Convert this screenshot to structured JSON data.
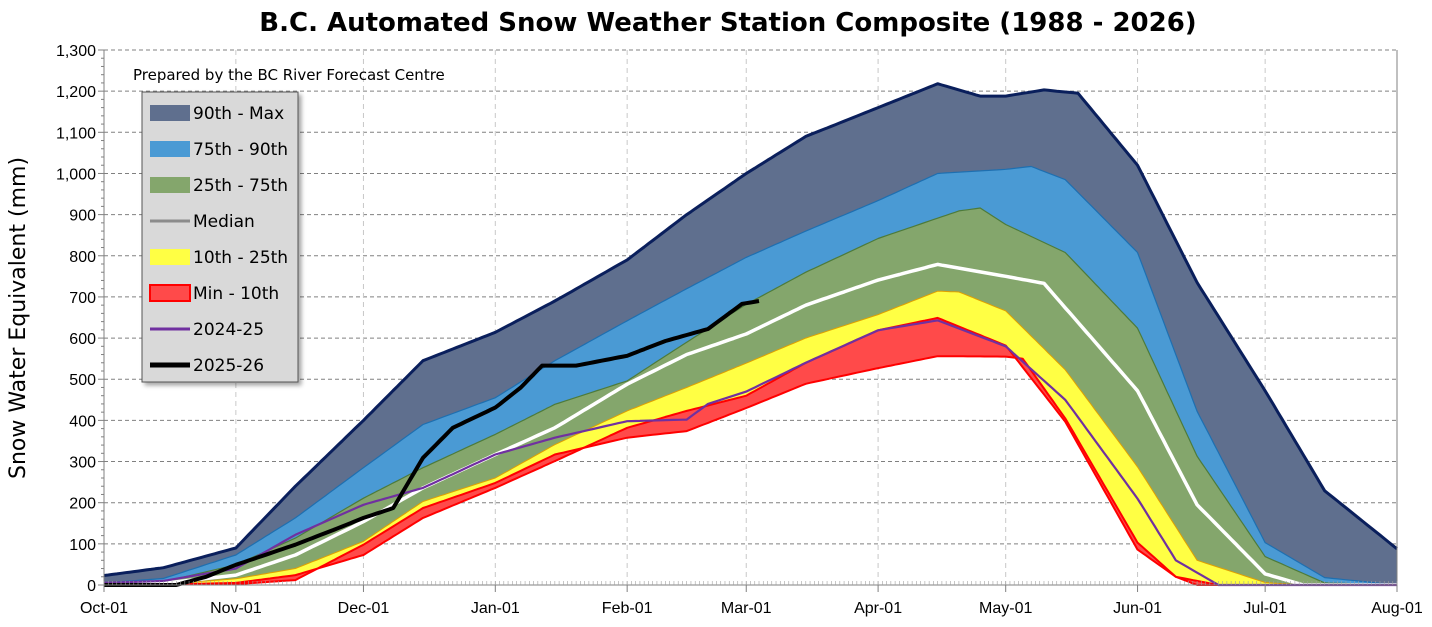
{
  "chart_data": {
    "type": "area",
    "title": "B.C. Automated Snow Weather Station Composite (1988 - 2026)",
    "annotation": "Prepared by the BC River Forecast Centre",
    "xlabel": "",
    "ylabel": "Snow Water Equivalent (mm)",
    "ylim": [
      0,
      1300
    ],
    "yticks": [
      "0",
      "100",
      "200",
      "300",
      "400",
      "500",
      "600",
      "700",
      "800",
      "900",
      "1,000",
      "1,100",
      "1,200",
      "1,300"
    ],
    "xticks": [
      "Oct-01",
      "Nov-01",
      "Dec-01",
      "Jan-01",
      "Feb-01",
      "Mar-01",
      "Apr-01",
      "May-01",
      "Jun-01",
      "Jul-01",
      "Aug-01"
    ],
    "grid": true,
    "legend_position": "top-left",
    "legend": [
      {
        "label": "90th - Max",
        "kind": "band",
        "color": "#5f6f8e"
      },
      {
        "label": "75th - 90th",
        "kind": "band",
        "color": "#4a9ad4"
      },
      {
        "label": "25th - 75th",
        "kind": "band",
        "color": "#84a66c"
      },
      {
        "label": "Median",
        "kind": "line",
        "color": "#ffffff"
      },
      {
        "label": "10th - 25th",
        "kind": "band",
        "color": "#ffff44"
      },
      {
        "label": "Min - 10th",
        "kind": "band",
        "color": "#ff4a4a"
      },
      {
        "label": "2024-25",
        "kind": "line",
        "color": "#7030a0"
      },
      {
        "label": "2025-26",
        "kind": "line",
        "color": "#000000"
      }
    ],
    "series": {
      "max": [
        [
          "Oct-01",
          23
        ],
        [
          "Oct-15",
          42
        ],
        [
          "Nov-01",
          90
        ],
        [
          "Nov-15",
          240
        ],
        [
          "Dec-01",
          400
        ],
        [
          "Dec-15",
          545
        ],
        [
          "Jan-01",
          614
        ],
        [
          "Jan-15",
          690
        ],
        [
          "Feb-01",
          790
        ],
        [
          "Feb-15",
          900
        ],
        [
          "Mar-01",
          1000
        ],
        [
          "Mar-15",
          1090
        ],
        [
          "Apr-01",
          1160
        ],
        [
          "Apr-15",
          1218
        ],
        [
          "Apr-25",
          1188
        ],
        [
          "May-01",
          1188
        ],
        [
          "May-10",
          1203
        ],
        [
          "May-18",
          1195
        ],
        [
          "Jun-01",
          1020
        ],
        [
          "Jun-15",
          735
        ],
        [
          "Jul-01",
          472
        ],
        [
          "Jul-15",
          229
        ],
        [
          "Aug-01",
          88
        ]
      ],
      "p90": [
        [
          "Oct-01",
          5
        ],
        [
          "Oct-15",
          16
        ],
        [
          "Nov-01",
          73
        ],
        [
          "Nov-15",
          163
        ],
        [
          "Dec-01",
          285
        ],
        [
          "Dec-15",
          390
        ],
        [
          "Jan-01",
          455
        ],
        [
          "Jan-15",
          545
        ],
        [
          "Feb-01",
          642
        ],
        [
          "Feb-15",
          720
        ],
        [
          "Mar-01",
          796
        ],
        [
          "Mar-15",
          860
        ],
        [
          "Apr-01",
          934
        ],
        [
          "Apr-15",
          1000
        ],
        [
          "May-01",
          1010
        ],
        [
          "May-07",
          1017
        ],
        [
          "May-15",
          985
        ],
        [
          "Jun-01",
          808
        ],
        [
          "Jun-15",
          422
        ],
        [
          "Jul-01",
          103
        ],
        [
          "Jul-15",
          18
        ],
        [
          "Aug-01",
          0
        ]
      ],
      "p75": [
        [
          "Oct-01",
          2
        ],
        [
          "Oct-15",
          8
        ],
        [
          "Nov-01",
          49
        ],
        [
          "Nov-15",
          114
        ],
        [
          "Dec-01",
          211
        ],
        [
          "Dec-15",
          285
        ],
        [
          "Jan-01",
          366
        ],
        [
          "Jan-15",
          439
        ],
        [
          "Feb-01",
          496
        ],
        [
          "Feb-15",
          590
        ],
        [
          "Mar-01",
          682
        ],
        [
          "Mar-15",
          760
        ],
        [
          "Apr-01",
          842
        ],
        [
          "Apr-20",
          909
        ],
        [
          "Apr-25",
          916
        ],
        [
          "May-01",
          876
        ],
        [
          "May-15",
          808
        ],
        [
          "Jun-01",
          624
        ],
        [
          "Jun-15",
          313
        ],
        [
          "Jul-01",
          69
        ],
        [
          "Jul-15",
          5
        ],
        [
          "Aug-01",
          0
        ]
      ],
      "median": [
        [
          "Oct-01",
          0
        ],
        [
          "Oct-15",
          4
        ],
        [
          "Nov-01",
          24
        ],
        [
          "Nov-15",
          73
        ],
        [
          "Dec-01",
          154
        ],
        [
          "Dec-15",
          236
        ],
        [
          "Jan-01",
          317
        ],
        [
          "Jan-15",
          382
        ],
        [
          "Feb-01",
          488
        ],
        [
          "Feb-15",
          560
        ],
        [
          "Mar-01",
          610
        ],
        [
          "Mar-15",
          680
        ],
        [
          "Apr-01",
          741
        ],
        [
          "Apr-15",
          779
        ],
        [
          "May-01",
          750
        ],
        [
          "May-10",
          733
        ],
        [
          "Jun-01",
          472
        ],
        [
          "Jun-15",
          195
        ],
        [
          "Jul-01",
          27
        ],
        [
          "Jul-10",
          0
        ],
        [
          "Aug-01",
          0
        ]
      ],
      "p25": [
        [
          "Oct-01",
          0
        ],
        [
          "Oct-15",
          2
        ],
        [
          "Nov-01",
          15
        ],
        [
          "Nov-15",
          40
        ],
        [
          "Dec-01",
          106
        ],
        [
          "Dec-15",
          203
        ],
        [
          "Jan-01",
          260
        ],
        [
          "Jan-15",
          341
        ],
        [
          "Feb-01",
          423
        ],
        [
          "Feb-15",
          480
        ],
        [
          "Mar-01",
          539
        ],
        [
          "Mar-15",
          600
        ],
        [
          "Apr-01",
          657
        ],
        [
          "Apr-15",
          714
        ],
        [
          "Apr-20",
          712
        ],
        [
          "May-01",
          666
        ],
        [
          "May-15",
          523
        ],
        [
          "Jun-01",
          287
        ],
        [
          "Jun-15",
          60
        ],
        [
          "Jul-01",
          6
        ],
        [
          "Jul-10",
          0
        ],
        [
          "Aug-01",
          0
        ]
      ],
      "p10": [
        [
          "Oct-01",
          0
        ],
        [
          "Oct-15",
          1
        ],
        [
          "Nov-01",
          5
        ],
        [
          "Nov-15",
          24
        ],
        [
          "Dec-01",
          73
        ],
        [
          "Dec-15",
          163
        ],
        [
          "Jan-01",
          236
        ],
        [
          "Jan-15",
          301
        ],
        [
          "Feb-01",
          382
        ],
        [
          "Feb-15",
          423
        ],
        [
          "Mar-01",
          460
        ],
        [
          "Mar-15",
          540
        ],
        [
          "Apr-01",
          619
        ],
        [
          "Apr-15",
          649
        ],
        [
          "May-01",
          582
        ],
        [
          "May-15",
          397
        ],
        [
          "Jun-01",
          86
        ],
        [
          "Jun-10",
          20
        ],
        [
          "Jun-20",
          0
        ],
        [
          "Aug-01",
          0
        ]
      ],
      "min": [
        [
          "Oct-01",
          0
        ],
        [
          "Nov-01",
          2
        ],
        [
          "Nov-15",
          12
        ],
        [
          "Dec-01",
          98
        ],
        [
          "Dec-15",
          187
        ],
        [
          "Jan-01",
          248
        ],
        [
          "Jan-15",
          317
        ],
        [
          "Feb-01",
          358
        ],
        [
          "Feb-15",
          374
        ],
        [
          "Mar-01",
          430
        ],
        [
          "Mar-15",
          489
        ],
        [
          "Apr-01",
          527
        ],
        [
          "Apr-15",
          556
        ],
        [
          "May-01",
          555
        ],
        [
          "May-05",
          550
        ],
        [
          "May-15",
          405
        ],
        [
          "Jun-01",
          103
        ],
        [
          "Jun-10",
          20
        ],
        [
          "Jun-15",
          0
        ],
        [
          "Aug-01",
          0
        ]
      ],
      "y2024_25": [
        [
          "Oct-01",
          5
        ],
        [
          "Oct-15",
          10
        ],
        [
          "Nov-01",
          40
        ],
        [
          "Nov-15",
          122
        ],
        [
          "Dec-01",
          195
        ],
        [
          "Dec-15",
          236
        ],
        [
          "Jan-01",
          317
        ],
        [
          "Jan-15",
          358
        ],
        [
          "Feb-01",
          398
        ],
        [
          "Feb-15",
          402
        ],
        [
          "Feb-20",
          440
        ],
        [
          "Mar-01",
          470
        ],
        [
          "Mar-15",
          540
        ],
        [
          "Apr-01",
          619
        ],
        [
          "Apr-15",
          643
        ],
        [
          "May-01",
          580
        ],
        [
          "May-15",
          450
        ],
        [
          "Jun-01",
          210
        ],
        [
          "Jun-10",
          60
        ],
        [
          "Jun-20",
          0
        ],
        [
          "Aug-01",
          0
        ]
      ],
      "y2025_26": [
        [
          "Oct-01",
          0
        ],
        [
          "Oct-18",
          0
        ],
        [
          "Oct-25",
          20
        ],
        [
          "Nov-01",
          49
        ],
        [
          "Nov-15",
          98
        ],
        [
          "Nov-25",
          138
        ],
        [
          "Dec-01",
          163
        ],
        [
          "Dec-08",
          187
        ],
        [
          "Dec-15",
          309
        ],
        [
          "Dec-22",
          382
        ],
        [
          "Jan-01",
          431
        ],
        [
          "Jan-07",
          480
        ],
        [
          "Jan-12",
          533
        ],
        [
          "Jan-20",
          533
        ],
        [
          "Feb-01",
          557
        ],
        [
          "Feb-10",
          593
        ],
        [
          "Feb-20",
          622
        ],
        [
          "Feb-28",
          683
        ],
        [
          "Mar-04",
          690
        ]
      ]
    }
  }
}
